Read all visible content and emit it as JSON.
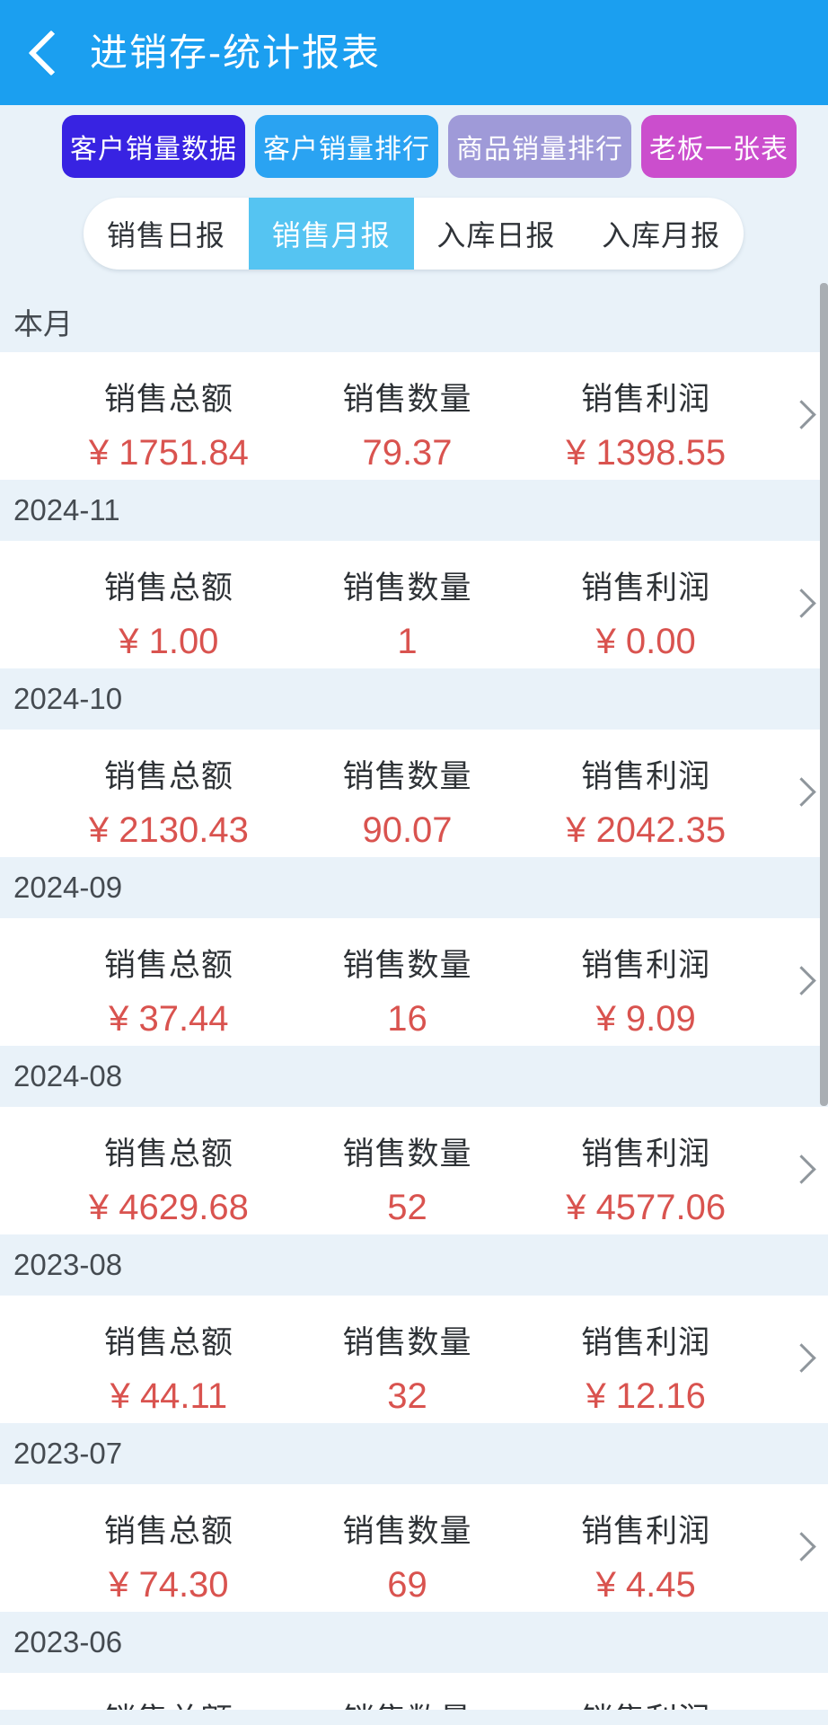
{
  "header": {
    "title": "进销存-统计报表"
  },
  "quick_buttons": [
    {
      "label": "客户销量数据",
      "bg": "#3823e2"
    },
    {
      "label": "客户销量排行",
      "bg": "#2aa3f2"
    },
    {
      "label": "商品销量排行",
      "bg": "#9f9ad8"
    },
    {
      "label": "老板一张表",
      "bg": "#cb4ecd"
    }
  ],
  "tabs": [
    {
      "label": "销售日报",
      "active": false
    },
    {
      "label": "销售月报",
      "active": true
    },
    {
      "label": "入库日报",
      "active": false
    },
    {
      "label": "入库月报",
      "active": false
    }
  ],
  "report": {
    "columns": [
      "销售总额",
      "销售数量",
      "销售利润"
    ],
    "sections": [
      {
        "period": "本月",
        "total": "¥ 1751.84",
        "qty": "79.37",
        "profit": "¥ 1398.55"
      },
      {
        "period": "2024-11",
        "total": "¥ 1.00",
        "qty": "1",
        "profit": "¥ 0.00"
      },
      {
        "period": "2024-10",
        "total": "¥ 2130.43",
        "qty": "90.07",
        "profit": "¥ 2042.35"
      },
      {
        "period": "2024-09",
        "total": "¥ 37.44",
        "qty": "16",
        "profit": "¥ 9.09"
      },
      {
        "period": "2024-08",
        "total": "¥ 4629.68",
        "qty": "52",
        "profit": "¥ 4577.06"
      },
      {
        "period": "2023-08",
        "total": "¥ 44.11",
        "qty": "32",
        "profit": "¥ 12.16"
      },
      {
        "period": "2023-07",
        "total": "¥ 74.30",
        "qty": "69",
        "profit": "¥ 4.45"
      },
      {
        "period": "2023-06",
        "total": "",
        "qty": "",
        "profit": ""
      }
    ]
  },
  "colors": {
    "header_bg": "#1b9ff0",
    "page_bg": "#e9f2f9",
    "active_tab_bg": "#55c4f2",
    "value_red": "#d9534f",
    "scrollbar": "#a9aeb3"
  }
}
